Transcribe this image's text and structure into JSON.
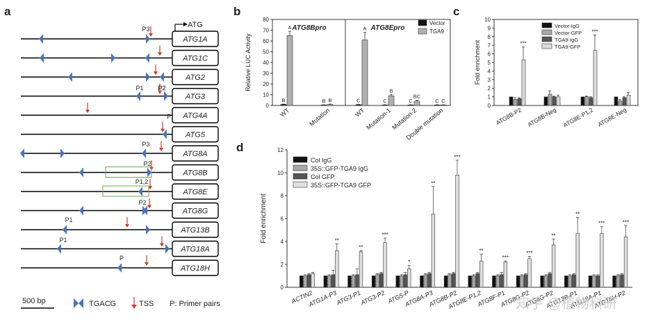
{
  "panel_a": {
    "label": "a",
    "atg_marker": "ATG",
    "genes": [
      {
        "name": "ATG1A"
      },
      {
        "name": "ATG1C"
      },
      {
        "name": "ATG2"
      },
      {
        "name": "ATG3"
      },
      {
        "name": "ATG4A"
      },
      {
        "name": "ATG5"
      },
      {
        "name": "ATG8A"
      },
      {
        "name": "ATG8B"
      },
      {
        "name": "ATG8E"
      },
      {
        "name": "ATG8G"
      },
      {
        "name": "ATG13B"
      },
      {
        "name": "ATG18A"
      },
      {
        "name": "ATG18H"
      }
    ],
    "primer_labels": [
      "P3",
      "P2",
      "P1",
      "P2",
      "P",
      "P3",
      "P2",
      "P1,2",
      "P2",
      "P1",
      "P1",
      "P"
    ],
    "legend": {
      "scale": "500 bp",
      "motif": "TGACG",
      "tss": "TSS",
      "primer": "P: Primer pairs"
    }
  },
  "panel_b": {
    "label": "b",
    "chart_data": {
      "type": "bar",
      "ylabel": "Relative LUC Activity",
      "ylim": [
        0,
        80
      ],
      "yticks": [
        0,
        10,
        20,
        30,
        40,
        50,
        60,
        70,
        80
      ],
      "sections": [
        {
          "title": "ATG8Bpro",
          "categories": [
            "WT",
            "Mutation"
          ]
        },
        {
          "title": "ATG8Epro",
          "categories": [
            "WT",
            "Mutation-1",
            "Mutation-2",
            "Double mutation"
          ]
        }
      ],
      "series": [
        {
          "name": "Vector",
          "color": "#111111",
          "values": [
            1,
            0.5,
            0.8,
            0.5,
            0.5,
            0.5
          ],
          "errors": [
            0.3,
            0.2,
            0.2,
            0.2,
            0.2,
            0.2
          ],
          "letters": [
            "B",
            "B",
            "C",
            "C",
            "C",
            "C"
          ]
        },
        {
          "name": "TGA9",
          "color": "#b0b0b0",
          "values": [
            65,
            1,
            61,
            9,
            4,
            0.5
          ],
          "errors": [
            4,
            0.3,
            7,
            1,
            0.8,
            0.2
          ],
          "letters": [
            "A",
            "B",
            "A",
            "B",
            "BC",
            "C"
          ]
        }
      ]
    }
  },
  "panel_c": {
    "label": "c",
    "chart_data": {
      "type": "bar",
      "ylabel": "Fold enrichment",
      "ylim": [
        0,
        10
      ],
      "yticks": [
        0,
        1,
        2,
        3,
        4,
        5,
        6,
        7,
        8,
        9,
        10
      ],
      "categories": [
        "ATG8B-P2",
        "ATG8B-Neg",
        "ATG8E-P1,2",
        "ATG8E-Neg"
      ],
      "series": [
        {
          "name": "Vector-IgG",
          "color": "#111111",
          "values": [
            1,
            1,
            1,
            1
          ],
          "errors": [
            0,
            0,
            0,
            0
          ]
        },
        {
          "name": "Vector-GFP",
          "color": "#a8a8a8",
          "values": [
            0.7,
            1.3,
            1,
            0.5
          ],
          "errors": [
            0.2,
            0.4,
            0.1,
            0.2
          ]
        },
        {
          "name": "TGA9-IgG",
          "color": "#555555",
          "values": [
            0.8,
            1,
            0.9,
            0.9
          ],
          "errors": [
            0.1,
            0.1,
            0.1,
            0.1
          ]
        },
        {
          "name": "TGA9-GFP",
          "color": "#dcdcdc",
          "values": [
            5.3,
            1,
            6.4,
            1.2
          ],
          "errors": [
            1.5,
            0.2,
            1.8,
            0.3
          ]
        }
      ],
      "significance": [
        "***",
        "",
        "***",
        ""
      ]
    }
  },
  "panel_d": {
    "label": "d",
    "chart_data": {
      "type": "bar",
      "ylabel": "Fold enrichment",
      "ylim": [
        0,
        12
      ],
      "yticks": [
        0,
        2,
        4,
        6,
        8,
        10,
        12
      ],
      "categories": [
        "ACTIN2",
        "ATG1A-P3",
        "ATG3-P1",
        "ATG3-P2",
        "ATG5-P",
        "ATG8A-P3",
        "ATG8B-P2",
        "ATG8E-P1,2",
        "ATG8F-P1",
        "ATG8G-P2",
        "ATG8G-P2",
        "ATG13B-P1",
        "ATG18A-P1",
        "ATG18H-P2"
      ],
      "series": [
        {
          "name": "Col IgG",
          "color": "#111111",
          "values": [
            1,
            1,
            1,
            1,
            1,
            1,
            1,
            1,
            1,
            1,
            1,
            1,
            1,
            1
          ],
          "errors": [
            0,
            0,
            0,
            0,
            0,
            0,
            0,
            0,
            0,
            0,
            0,
            0,
            0,
            0
          ]
        },
        {
          "name": "35S::GFP-TGA9 IgG",
          "color": "#a8a8a8",
          "values": [
            1,
            1,
            1,
            1.1,
            1,
            1.1,
            1.1,
            1,
            1,
            1,
            1,
            1,
            1,
            1
          ],
          "errors": [
            0.1,
            0.1,
            0.1,
            0.1,
            0.1,
            0.1,
            0.1,
            0.1,
            0.1,
            0.1,
            0.1,
            0.1,
            0.1,
            0.1
          ]
        },
        {
          "name": "Col GFP",
          "color": "#555555",
          "values": [
            1.1,
            1.1,
            1.1,
            1.2,
            1.1,
            1.2,
            1.2,
            1.2,
            1.1,
            1.1,
            1.2,
            1.1,
            1,
            1.1
          ],
          "errors": [
            0.1,
            0.4,
            0.5,
            0.1,
            0.2,
            0.1,
            0.1,
            0.1,
            0.2,
            0.1,
            0.1,
            0.1,
            0.1,
            0.1
          ]
        },
        {
          "name": "35S::GFP-TGA9 GFP",
          "color": "#e0e0e0",
          "values": [
            1.2,
            3.2,
            3.1,
            3.9,
            1.6,
            6.4,
            9.8,
            2.3,
            2.2,
            2.5,
            3.7,
            4.7,
            4.7,
            4.4
          ],
          "errors": [
            0.1,
            0.6,
            0.1,
            0.4,
            0.3,
            2.4,
            1.3,
            0.6,
            0.1,
            0.2,
            0.5,
            1.4,
            0.6,
            1
          ]
        }
      ],
      "significance": [
        "",
        "**",
        "**",
        "***",
        "*",
        "**",
        "***",
        "**",
        "***",
        "***",
        "**",
        "**",
        "***",
        "***"
      ]
    }
  },
  "watermark": "知乎 @植物科研"
}
